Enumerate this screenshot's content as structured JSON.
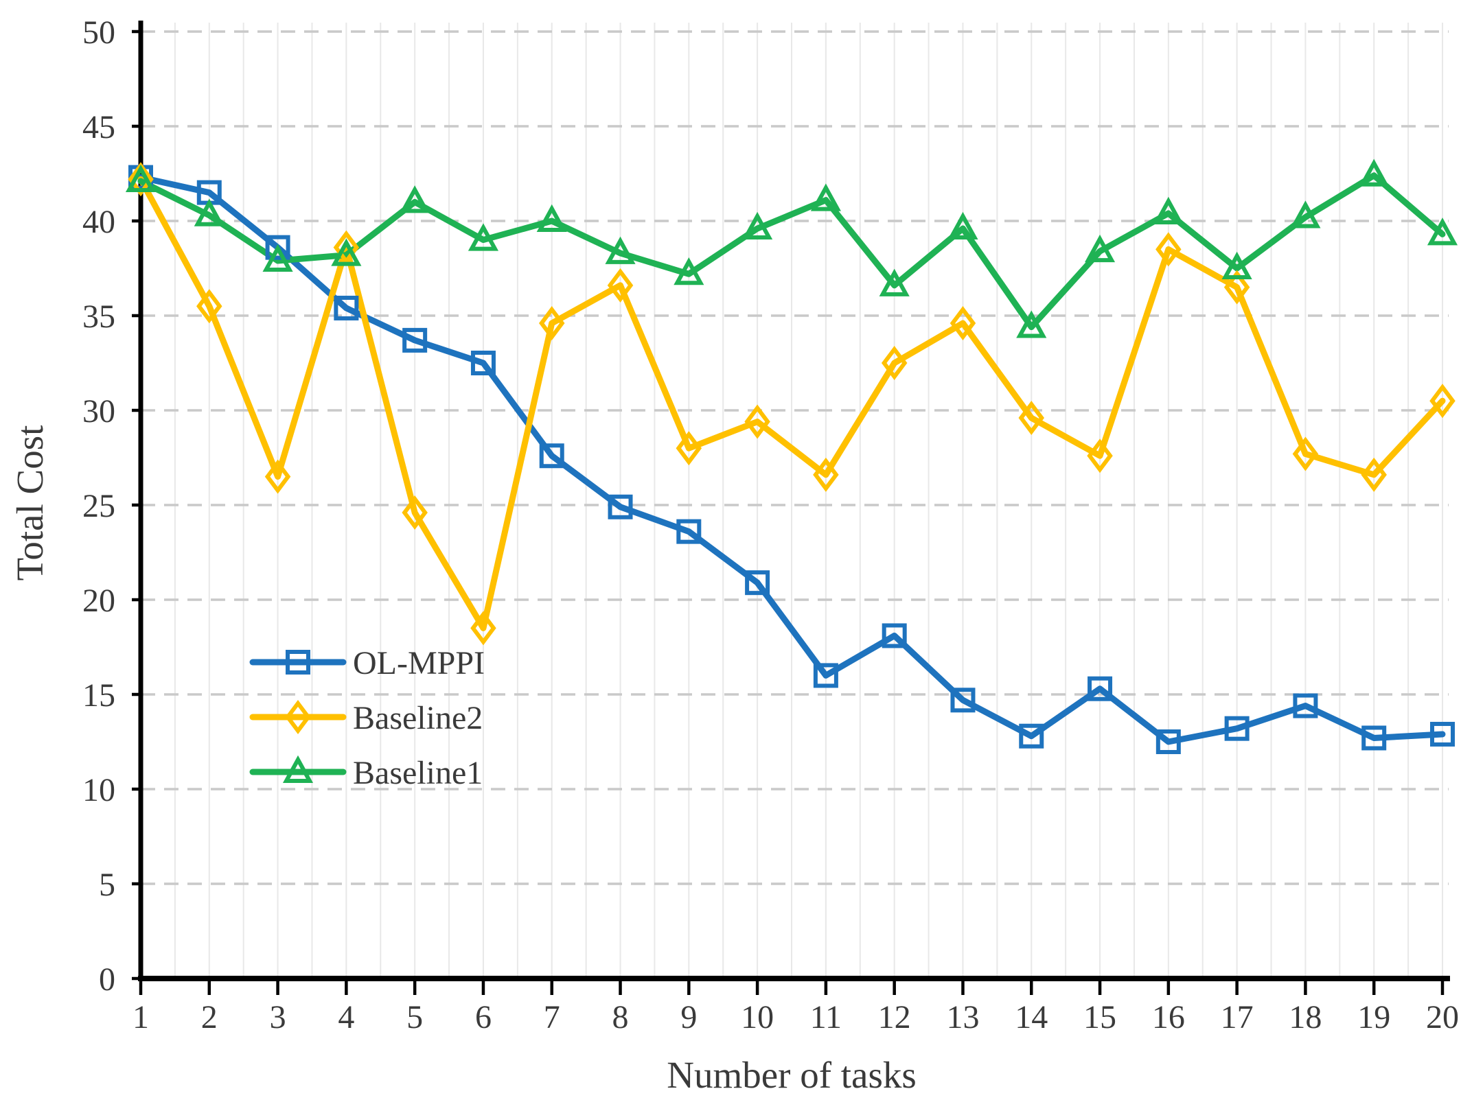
{
  "chart_data": {
    "type": "line",
    "title": "",
    "xlabel": "Number of tasks",
    "ylabel": "Total Cost",
    "x": [
      1,
      2,
      3,
      4,
      5,
      6,
      7,
      8,
      9,
      10,
      11,
      12,
      13,
      14,
      15,
      16,
      17,
      18,
      19,
      20
    ],
    "ylim": [
      0,
      50
    ],
    "ytick_step": 5,
    "grid": "horizontal dashed major gridlines, light solid vertical minor gridlines every half category",
    "legend_position": "inside-left-middle",
    "series": [
      {
        "name": "OL-MPPI",
        "color": "#1E73BE",
        "marker": "square",
        "values": [
          42.3,
          41.5,
          38.6,
          35.4,
          33.7,
          32.5,
          27.6,
          24.9,
          23.6,
          20.9,
          16.0,
          18.1,
          14.7,
          12.8,
          15.3,
          12.5,
          13.2,
          14.4,
          12.7,
          12.9
        ]
      },
      {
        "name": "Baseline2",
        "color": "#FFC000",
        "marker": "diamond",
        "values": [
          42.2,
          35.5,
          26.5,
          38.6,
          24.6,
          18.5,
          34.6,
          36.6,
          28.0,
          29.4,
          26.6,
          32.5,
          34.6,
          29.6,
          27.6,
          38.5,
          36.5,
          27.7,
          26.6,
          30.5
        ]
      },
      {
        "name": "Baseline1",
        "color": "#1FB254",
        "marker": "triangle",
        "values": [
          42.1,
          40.3,
          37.9,
          38.2,
          41.0,
          39.0,
          40.0,
          38.3,
          37.2,
          39.6,
          41.1,
          36.6,
          39.6,
          34.4,
          38.4,
          40.4,
          37.5,
          40.2,
          42.4,
          39.3
        ]
      }
    ]
  },
  "axes": {
    "x_ticks": [
      "1",
      "2",
      "3",
      "4",
      "5",
      "6",
      "7",
      "8",
      "9",
      "10",
      "11",
      "12",
      "13",
      "14",
      "15",
      "16",
      "17",
      "18",
      "19",
      "20"
    ],
    "y_ticks": [
      "0",
      "5",
      "10",
      "15",
      "20",
      "25",
      "30",
      "35",
      "40",
      "45",
      "50"
    ]
  },
  "legend": {
    "items": [
      "OL-MPPI",
      "Baseline2",
      "Baseline1"
    ]
  },
  "colors": {
    "axis": "#000000",
    "text": "#3a3a3a",
    "major_grid": "#c9c9c9",
    "minor_grid": "#e8e8e8",
    "background": "#ffffff"
  }
}
